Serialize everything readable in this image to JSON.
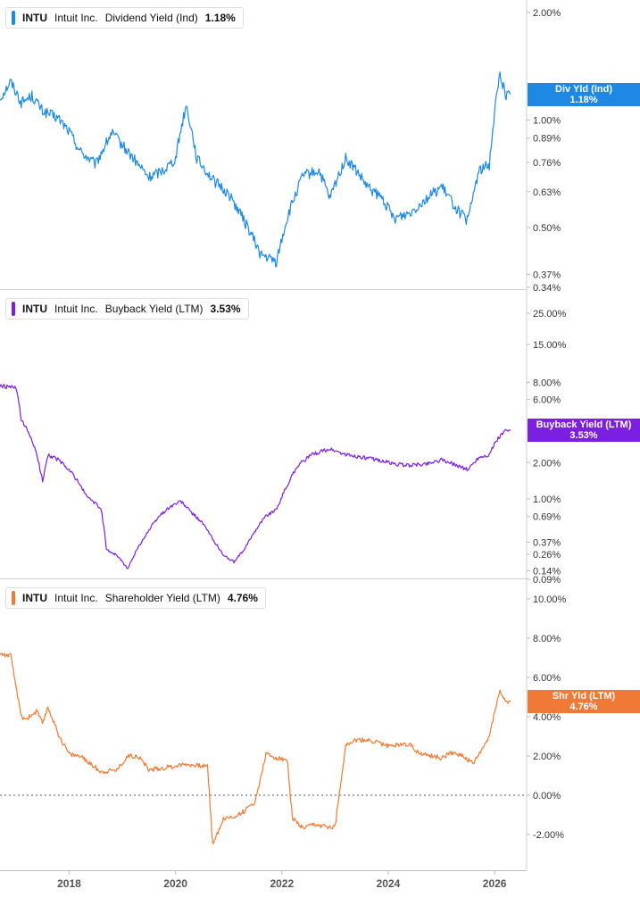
{
  "chart_data": [
    {
      "type": "line",
      "ticker": "INTU",
      "company": "Intuit Inc.",
      "metric": "Dividend Yield (Ind)",
      "current_value": "1.18%",
      "flag_label": "Div Yld (Ind)",
      "flag_value": "1.18%",
      "color": "#1e88e5",
      "y_scale": "log",
      "ylim": [
        0.34,
        2.0
      ],
      "y_ticks": [
        "2.00%",
        "1.00%",
        "0.89%",
        "0.76%",
        "0.63%",
        "0.50%",
        "0.37%",
        "0.34%"
      ],
      "x": [
        2016.7,
        2016.9,
        2017.1,
        2017.3,
        2017.5,
        2017.8,
        2018.0,
        2018.2,
        2018.5,
        2018.8,
        2019.0,
        2019.3,
        2019.5,
        2019.8,
        2020.0,
        2020.2,
        2020.4,
        2020.7,
        2021.0,
        2021.3,
        2021.6,
        2021.9,
        2022.1,
        2022.4,
        2022.7,
        2022.9,
        2023.2,
        2023.4,
        2023.6,
        2023.9,
        2024.1,
        2024.4,
        2024.7,
        2025.0,
        2025.3,
        2025.5,
        2025.7,
        2025.9,
        2026.0,
        2026.1,
        2026.2,
        2026.3
      ],
      "values": [
        1.15,
        1.28,
        1.12,
        1.17,
        1.06,
        1.01,
        0.93,
        0.82,
        0.75,
        0.92,
        0.85,
        0.75,
        0.69,
        0.73,
        0.78,
        1.1,
        0.78,
        0.68,
        0.62,
        0.52,
        0.42,
        0.4,
        0.53,
        0.7,
        0.72,
        0.6,
        0.78,
        0.72,
        0.65,
        0.6,
        0.53,
        0.55,
        0.6,
        0.65,
        0.56,
        0.52,
        0.72,
        0.75,
        1.05,
        1.35,
        1.18,
        1.18
      ]
    },
    {
      "type": "line",
      "ticker": "INTU",
      "company": "Intuit Inc.",
      "metric": "Buyback Yield (LTM)",
      "current_value": "3.53%",
      "flag_label": "Buyback Yield (LTM)",
      "flag_value": "3.53%",
      "color": "#7b1fe0",
      "y_scale": "symlog",
      "ylim": [
        0.09,
        25.0
      ],
      "y_ticks": [
        "25.00%",
        "15.00%",
        "8.00%",
        "6.00%",
        "2.00%",
        "1.00%",
        "0.69%",
        "0.37%",
        "0.26%",
        "0.14%",
        "0.09%"
      ],
      "x": [
        2016.7,
        2017.0,
        2017.1,
        2017.3,
        2017.5,
        2017.6,
        2017.8,
        2018.1,
        2018.3,
        2018.6,
        2018.7,
        2018.9,
        2019.1,
        2019.3,
        2019.5,
        2019.7,
        2019.9,
        2020.1,
        2020.3,
        2020.5,
        2020.7,
        2020.9,
        2021.1,
        2021.3,
        2021.5,
        2021.7,
        2021.9,
        2022.1,
        2022.3,
        2022.6,
        2022.9,
        2023.2,
        2023.5,
        2023.8,
        2024.1,
        2024.4,
        2024.7,
        2025.0,
        2025.3,
        2025.5,
        2025.7,
        2025.9,
        2026.0,
        2026.1,
        2026.2,
        2026.3
      ],
      "values": [
        7.5,
        7.3,
        4.2,
        3.0,
        1.4,
        2.3,
        2.1,
        1.55,
        1.1,
        0.8,
        0.3,
        0.25,
        0.15,
        0.32,
        0.5,
        0.7,
        0.85,
        0.95,
        0.75,
        0.6,
        0.4,
        0.25,
        0.2,
        0.3,
        0.5,
        0.7,
        0.8,
        1.3,
        1.9,
        2.35,
        2.55,
        2.3,
        2.2,
        2.1,
        1.95,
        1.9,
        1.95,
        2.1,
        1.9,
        1.75,
        2.2,
        2.3,
        2.8,
        3.2,
        3.5,
        3.53
      ]
    },
    {
      "type": "line",
      "ticker": "INTU",
      "company": "Intuit Inc.",
      "metric": "Shareholder Yield (LTM)",
      "current_value": "4.76%",
      "flag_label": "Shr Yld (LTM)",
      "flag_value": "4.76%",
      "color": "#f07a35",
      "y_scale": "linear",
      "ylim": [
        -2.5,
        10.0
      ],
      "y_ticks": [
        "10.00%",
        "8.00%",
        "6.00%",
        "4.00%",
        "2.00%",
        "0.00%",
        "-2.00%"
      ],
      "reference_line": 0,
      "x": [
        2016.7,
        2016.9,
        2017.1,
        2017.2,
        2017.4,
        2017.5,
        2017.6,
        2017.8,
        2018.0,
        2018.2,
        2018.4,
        2018.6,
        2018.9,
        2019.1,
        2019.3,
        2019.5,
        2019.8,
        2020.0,
        2020.2,
        2020.4,
        2020.6,
        2020.7,
        2020.9,
        2021.1,
        2021.3,
        2021.5,
        2021.7,
        2021.9,
        2022.1,
        2022.2,
        2022.4,
        2022.6,
        2022.8,
        2023.0,
        2023.2,
        2023.4,
        2023.6,
        2023.8,
        2024.0,
        2024.2,
        2024.4,
        2024.6,
        2024.8,
        2025.0,
        2025.2,
        2025.4,
        2025.6,
        2025.8,
        2025.9,
        2026.0,
        2026.1,
        2026.2,
        2026.3
      ],
      "values": [
        7.2,
        7.1,
        4.0,
        3.9,
        4.3,
        3.6,
        4.5,
        3.1,
        2.1,
        2.0,
        1.6,
        1.2,
        1.3,
        2.0,
        2.0,
        1.3,
        1.4,
        1.5,
        1.6,
        1.5,
        1.5,
        -2.5,
        -1.2,
        -1.1,
        -0.8,
        -0.3,
        2.1,
        1.9,
        1.8,
        -1.2,
        -1.7,
        -1.5,
        -1.6,
        -1.6,
        2.6,
        2.8,
        2.8,
        2.7,
        2.5,
        2.6,
        2.6,
        2.1,
        2.0,
        1.9,
        2.2,
        2.0,
        1.6,
        2.5,
        3.0,
        4.3,
        5.3,
        4.8,
        4.76
      ]
    }
  ],
  "x_axis": {
    "tick_labels": [
      "2018",
      "2020",
      "2022",
      "2024",
      "2026"
    ],
    "tick_values": [
      2018,
      2020,
      2022,
      2024,
      2026
    ]
  }
}
